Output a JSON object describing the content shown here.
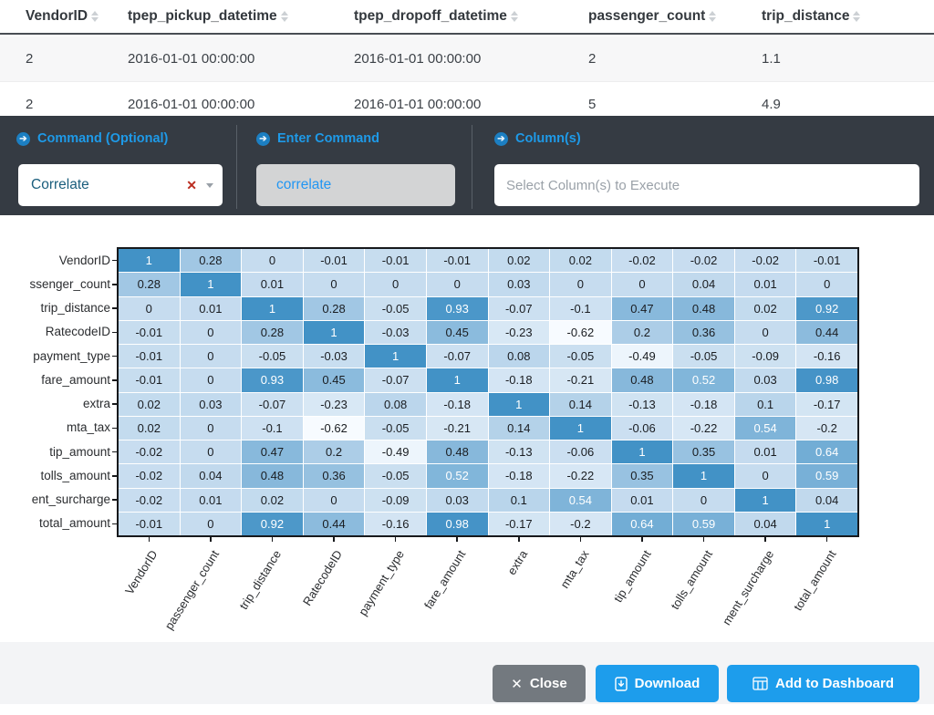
{
  "table": {
    "columns": [
      "VendorID",
      "tpep_pickup_datetime",
      "tpep_dropoff_datetime",
      "passenger_count",
      "trip_distance"
    ],
    "rows": [
      [
        "2",
        "2016-01-01 00:00:00",
        "2016-01-01 00:00:00",
        "2",
        "1.1"
      ],
      [
        "2",
        "2016-01-01 00:00:00",
        "2016-01-01 00:00:00",
        "5",
        "4.9"
      ]
    ]
  },
  "command_bar": {
    "sections": [
      {
        "label": "Command (Optional)",
        "control": "dropdown",
        "value": "Correlate"
      },
      {
        "label": "Enter Command",
        "control": "text",
        "value": "correlate"
      },
      {
        "label": "Column(s)",
        "control": "input",
        "value": "",
        "placeholder": "Select Column(s) to Execute"
      }
    ]
  },
  "chart_data": {
    "type": "heatmap",
    "title": "",
    "x_labels": [
      "VendorID",
      "passenger_count",
      "trip_distance",
      "RatecodeID",
      "payment_type",
      "fare_amount",
      "extra",
      "mta_tax",
      "tip_amount",
      "tolls_amount",
      "ment_surcharge",
      "total_amount"
    ],
    "y_labels": [
      "VendorID",
      "ssenger_count",
      "trip_distance",
      "RatecodeID",
      "payment_type",
      "fare_amount",
      "extra",
      "mta_tax",
      "tip_amount",
      "tolls_amount",
      "ent_surcharge",
      "total_amount"
    ],
    "matrix": [
      [
        "1",
        "0.28",
        "0",
        "-0.01",
        "-0.01",
        "-0.01",
        "0.02",
        "0.02",
        "-0.02",
        "-0.02",
        "-0.02",
        "-0.01"
      ],
      [
        "0.28",
        "1",
        "0.01",
        "0",
        "0",
        "0",
        "0.03",
        "0",
        "0",
        "0.04",
        "0.01",
        "0"
      ],
      [
        "0",
        "0.01",
        "1",
        "0.28",
        "-0.05",
        "0.93",
        "-0.07",
        "-0.1",
        "0.47",
        "0.48",
        "0.02",
        "0.92"
      ],
      [
        "-0.01",
        "0",
        "0.28",
        "1",
        "-0.03",
        "0.45",
        "-0.23",
        "-0.62",
        "0.2",
        "0.36",
        "0",
        "0.44"
      ],
      [
        "-0.01",
        "0",
        "-0.05",
        "-0.03",
        "1",
        "-0.07",
        "0.08",
        "-0.05",
        "-0.49",
        "-0.05",
        "-0.09",
        "-0.16"
      ],
      [
        "-0.01",
        "0",
        "0.93",
        "0.45",
        "-0.07",
        "1",
        "-0.18",
        "-0.21",
        "0.48",
        "0.52",
        "0.03",
        "0.98"
      ],
      [
        "0.02",
        "0.03",
        "-0.07",
        "-0.23",
        "0.08",
        "-0.18",
        "1",
        "0.14",
        "-0.13",
        "-0.18",
        "0.1",
        "-0.17"
      ],
      [
        "0.02",
        "0",
        "-0.1",
        "-0.62",
        "-0.05",
        "-0.21",
        "0.14",
        "1",
        "-0.06",
        "-0.22",
        "0.54",
        "-0.2"
      ],
      [
        "-0.02",
        "0",
        "0.47",
        "0.2",
        "-0.49",
        "0.48",
        "-0.13",
        "-0.06",
        "1",
        "0.35",
        "0.01",
        "0.64"
      ],
      [
        "-0.02",
        "0.04",
        "0.48",
        "0.36",
        "-0.05",
        "0.52",
        "-0.18",
        "-0.22",
        "0.35",
        "1",
        "0",
        "0.59"
      ],
      [
        "-0.02",
        "0.01",
        "0.02",
        "0",
        "-0.09",
        "0.03",
        "0.1",
        "0.54",
        "0.01",
        "0",
        "1",
        "0.04"
      ],
      [
        "-0.01",
        "0",
        "0.92",
        "0.44",
        "-0.16",
        "0.98",
        "-0.17",
        "-0.2",
        "0.64",
        "0.59",
        "0.04",
        "1"
      ]
    ],
    "color_scale": {
      "min_value": -0.62,
      "max_value": 1,
      "low_color": "#f7fbff",
      "zero_color": "#c6dcef",
      "high_color": "#4292c6"
    },
    "white_text_threshold": 0.5,
    "legend": "none",
    "grid": true
  },
  "footer": {
    "close_label": "Close",
    "download_label": "Download",
    "add_label": "Add to Dashboard"
  },
  "icons": {
    "sort": "sort-arrows-icon",
    "section_bullet": "arrow-circle-icon",
    "dropdown_clear": "clear-x-icon",
    "dropdown_caret": "chevron-down-icon",
    "close": "x-icon",
    "download": "file-download-icon",
    "dashboard": "table-grid-icon"
  },
  "ui_colors": {
    "accent_blue": "#1e9ae8",
    "button_blue": "#1d9dec",
    "close_gray": "#73797f",
    "command_bar_bg": "#353b43",
    "footer_bg": "#f3f4f6",
    "row_stripe": "#f7f7f8"
  }
}
